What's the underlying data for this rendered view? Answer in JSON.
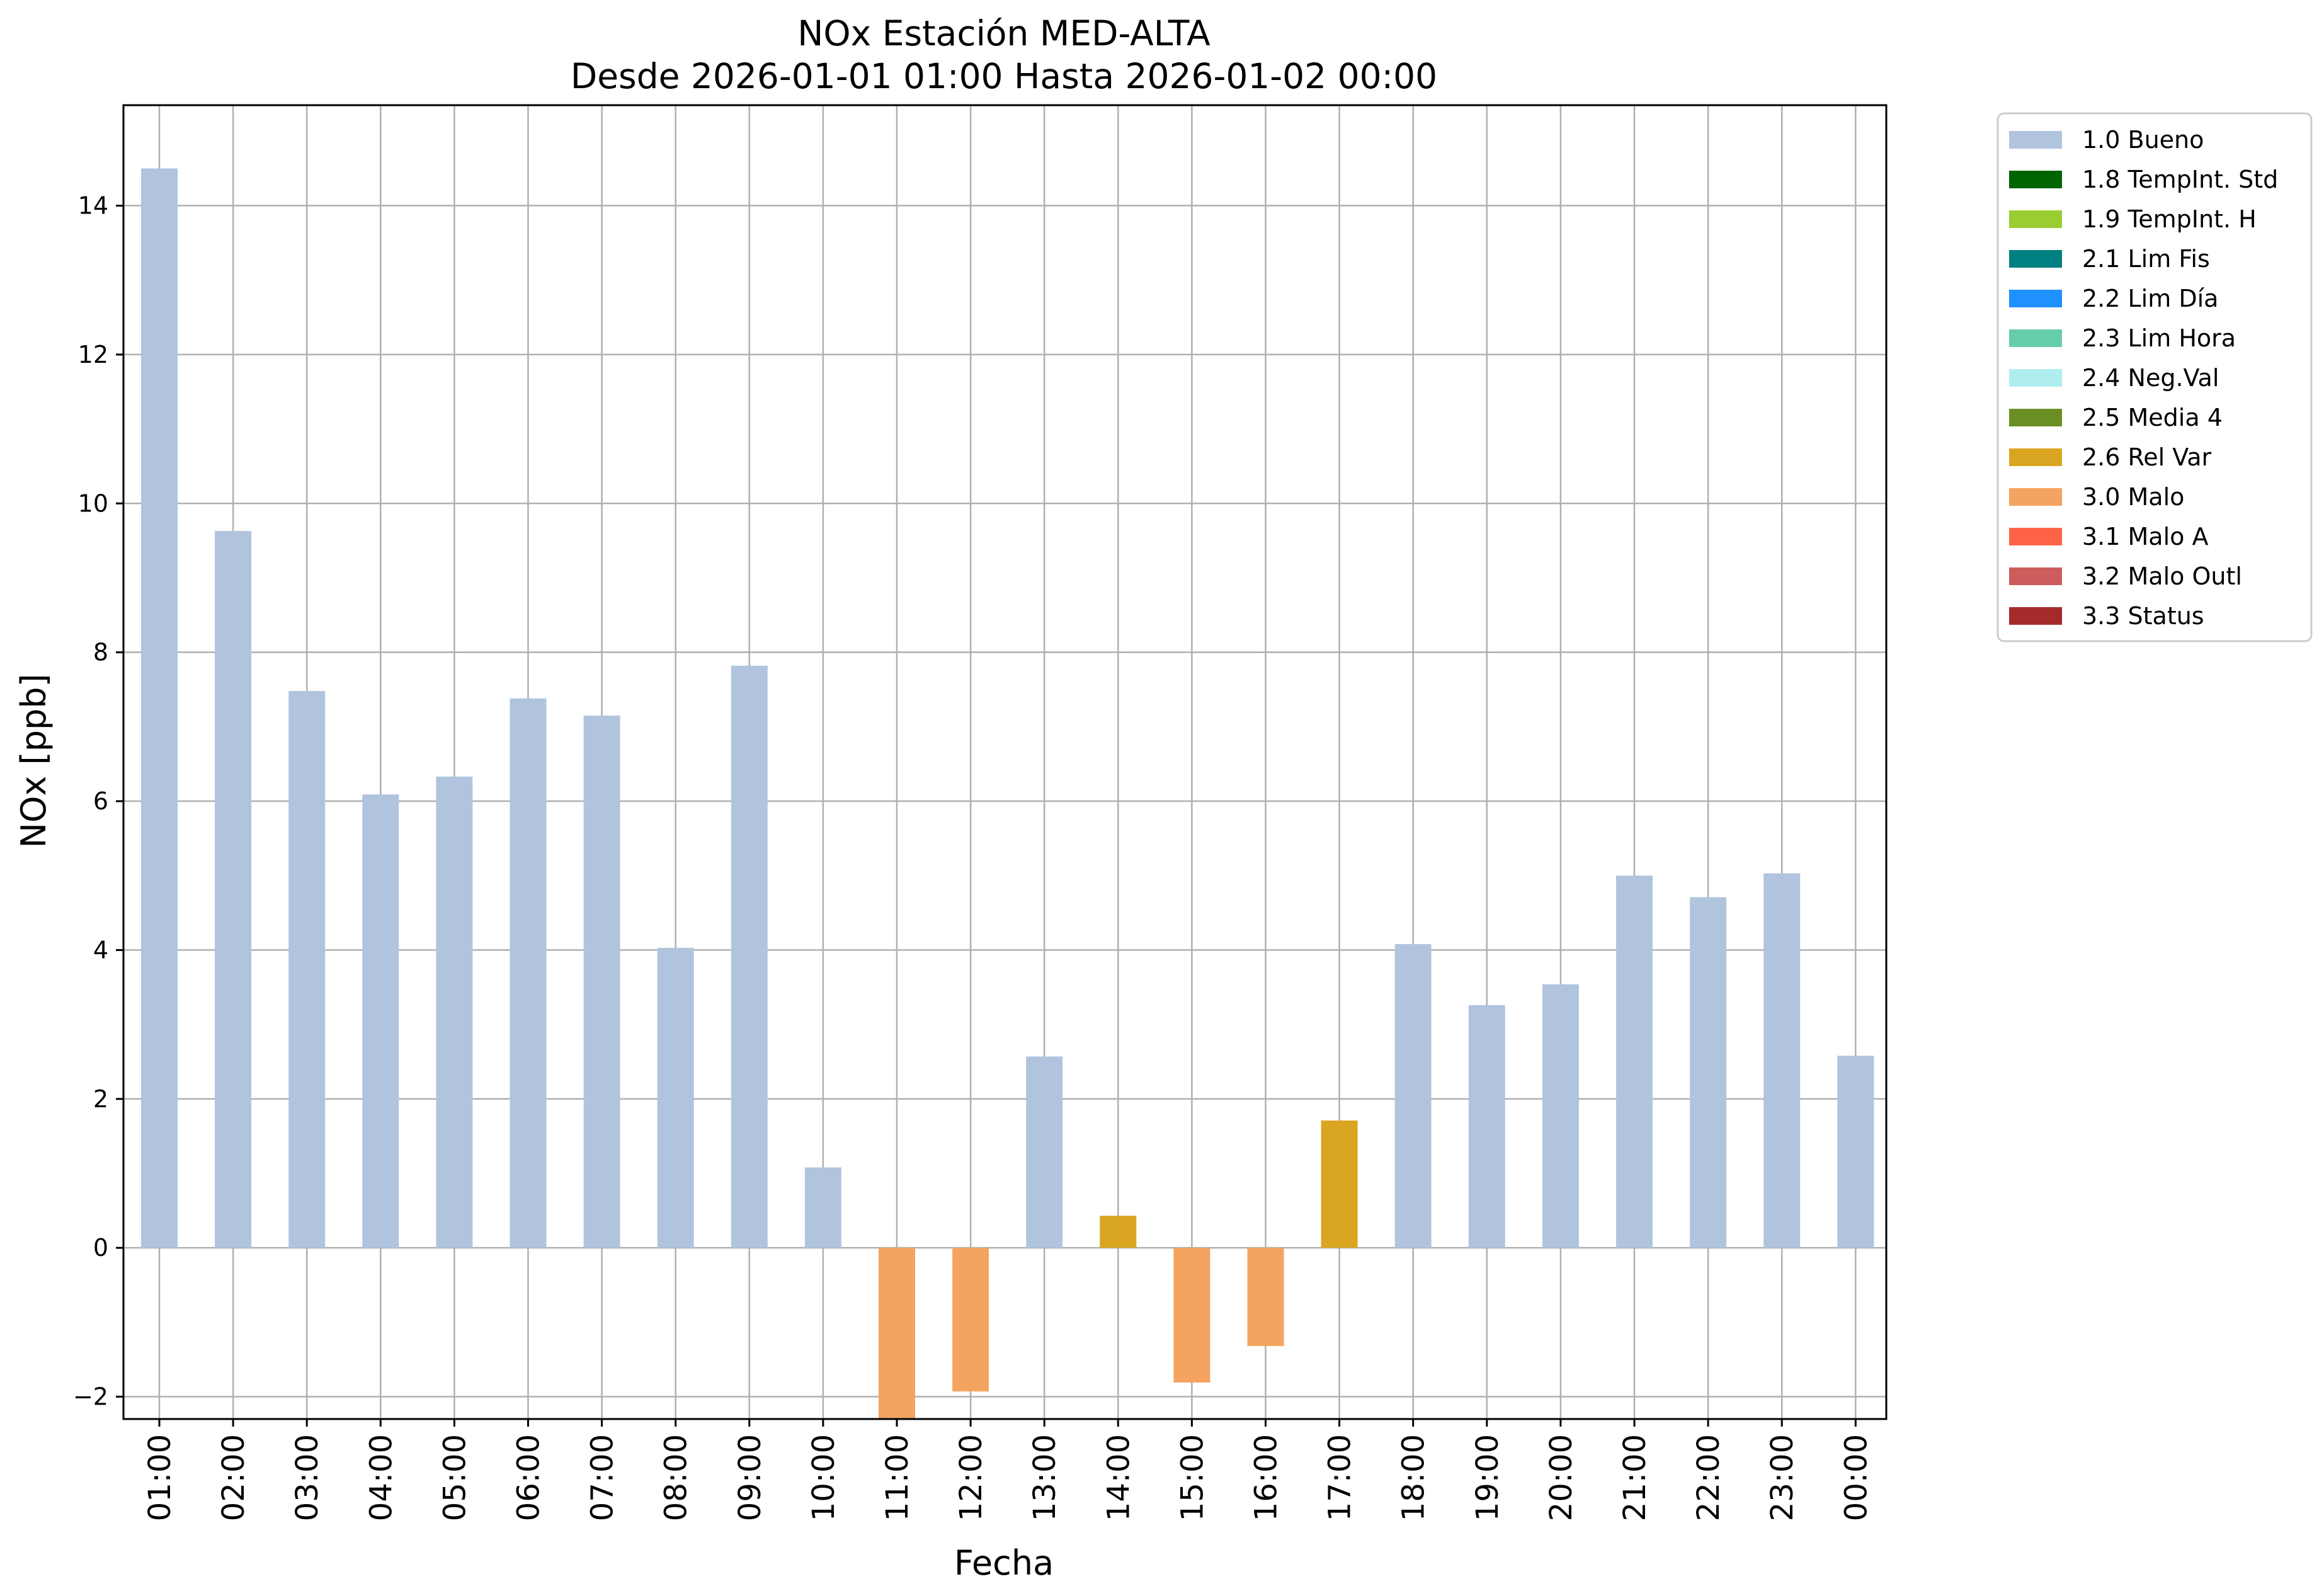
{
  "chart_data": {
    "type": "bar",
    "title": "NOx Estación MED-ALTA",
    "subtitle": "Desde 2026-01-01 01:00 Hasta 2026-01-02 00:00",
    "xlabel": "Fecha",
    "ylabel": "NOx [ppb]",
    "ylim": [
      -2.3,
      15.35
    ],
    "yticks": [
      -2,
      0,
      2,
      4,
      6,
      8,
      10,
      12,
      14
    ],
    "ytick_labels": [
      "−2",
      "0",
      "2",
      "4",
      "6",
      "8",
      "10",
      "12",
      "14"
    ],
    "grid": true,
    "legend_position": "outside-right",
    "categories": [
      "01:00",
      "02:00",
      "03:00",
      "04:00",
      "05:00",
      "06:00",
      "07:00",
      "08:00",
      "09:00",
      "10:00",
      "11:00",
      "12:00",
      "13:00",
      "14:00",
      "15:00",
      "16:00",
      "17:00",
      "18:00",
      "19:00",
      "20:00",
      "21:00",
      "22:00",
      "23:00",
      "00:00"
    ],
    "values": [
      14.5,
      9.63,
      7.48,
      6.09,
      6.33,
      7.38,
      7.15,
      4.03,
      7.82,
      1.08,
      -2.3,
      -1.93,
      2.57,
      0.43,
      -1.81,
      -1.32,
      1.71,
      4.08,
      3.26,
      3.54,
      5.0,
      4.71,
      5.03,
      2.58
    ],
    "flags": [
      "1.0",
      "1.0",
      "1.0",
      "1.0",
      "1.0",
      "1.0",
      "1.0",
      "1.0",
      "1.0",
      "1.0",
      "3.0",
      "3.0",
      "1.0",
      "2.6",
      "3.0",
      "3.0",
      "2.6",
      "1.0",
      "1.0",
      "1.0",
      "1.0",
      "1.0",
      "1.0",
      "1.0"
    ],
    "legend": [
      {
        "code": "1.0",
        "label": "1.0 Bueno",
        "color": "#b0c4de"
      },
      {
        "code": "1.8",
        "label": "1.8 TempInt. Std",
        "color": "#006400"
      },
      {
        "code": "1.9",
        "label": "1.9 TempInt. H",
        "color": "#9acd32"
      },
      {
        "code": "2.1",
        "label": "2.1 Lim Fis",
        "color": "#008080"
      },
      {
        "code": "2.2",
        "label": "2.2 Lim Día",
        "color": "#1e90ff"
      },
      {
        "code": "2.3",
        "label": "2.3 Lim Hora",
        "color": "#66cdaa"
      },
      {
        "code": "2.4",
        "label": "2.4 Neg.Val",
        "color": "#afeeee"
      },
      {
        "code": "2.5",
        "label": "2.5 Media 4",
        "color": "#6b8e23"
      },
      {
        "code": "2.6",
        "label": "2.6 Rel Var",
        "color": "#daa520"
      },
      {
        "code": "3.0",
        "label": "3.0 Malo",
        "color": "#f4a460"
      },
      {
        "code": "3.1",
        "label": "3.1 Malo A",
        "color": "#ff6347"
      },
      {
        "code": "3.2",
        "label": "3.2 Malo Outl",
        "color": "#cd5c5c"
      },
      {
        "code": "3.3",
        "label": "3.3 Status",
        "color": "#a52a2a"
      }
    ]
  }
}
